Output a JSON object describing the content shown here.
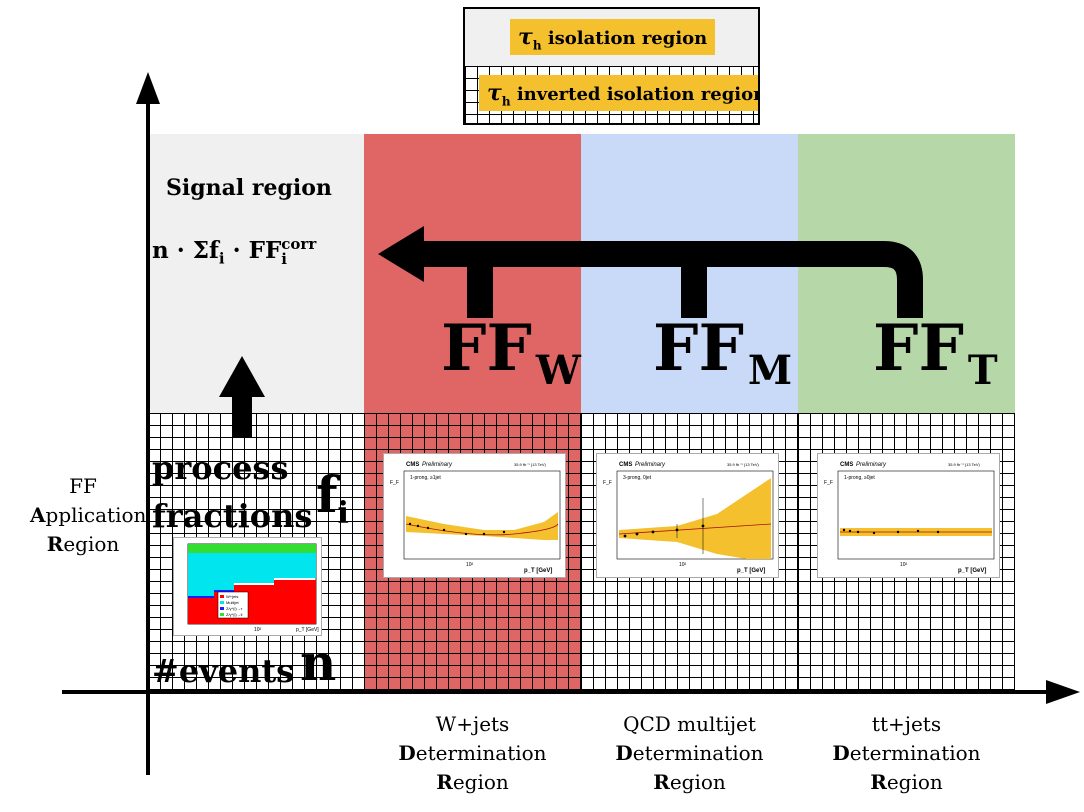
{
  "legend": {
    "isolation_label": "isolation region",
    "inverted_label": "inverted isolation region",
    "tau_symbol": "τ",
    "tau_sub": "h"
  },
  "signal_region": {
    "title": "Signal region",
    "formula_prefix": "n · Σf",
    "formula_i1": "i",
    "formula_mid": " · FF",
    "formula_sub": "i",
    "formula_sup": "corr"
  },
  "fake_factors": [
    {
      "main": "FF",
      "sub": "W"
    },
    {
      "main": "FF",
      "sub": "M"
    },
    {
      "main": "FF",
      "sub": "T"
    }
  ],
  "application": {
    "process_label": "process",
    "fractions_label": "fractions",
    "fi_main": "f",
    "fi_sub": "i",
    "events_label": "#events",
    "n_label": "n"
  },
  "y_axis_label": {
    "line1": "FF",
    "line2_bold": "A",
    "line2_rest": "pplication",
    "line3_bold": "R",
    "line3_rest": "egion"
  },
  "x_axis_labels": [
    {
      "line1": "W+jets",
      "line2_bold": "D",
      "line2_rest": "etermination",
      "line3_bold": "R",
      "line3_rest": "egion"
    },
    {
      "line1": "QCD multijet",
      "line2_bold": "D",
      "line2_rest": "etermination",
      "line3_bold": "R",
      "line3_rest": "egion"
    },
    {
      "line1": "tt+jets",
      "line2_bold": "D",
      "line2_rest": "etermination",
      "line3_bold": "R",
      "line3_rest": "egion"
    }
  ],
  "plots": [
    {
      "cms": "CMS",
      "prelim": "Preliminary",
      "lumi": "35.9 fb⁻¹ (13 TeV)",
      "category": "1-prong, ≥1jet",
      "ylabel": "F_F",
      "xlabel": "p_T [GeV]",
      "xtick": "10²"
    },
    {
      "cms": "CMS",
      "prelim": "Preliminary",
      "lumi": "35.9 fb⁻¹ (13 TeV)",
      "category": "3-prong, 0jet",
      "ylabel": "F_F",
      "xlabel": "p_T [GeV]",
      "xtick": "10²"
    },
    {
      "cms": "CMS",
      "prelim": "Preliminary",
      "lumi": "35.9 fb⁻¹ (13 TeV)",
      "category": "1-prong, ≥0jet",
      "ylabel": "F_F",
      "xlabel": "p_T [GeV]",
      "xtick": "10²"
    }
  ],
  "fraction_plot": {
    "legend": [
      "W+jets",
      "Multijet",
      "Z/γ*(l)→τ",
      "Z/γ*(l)→ll"
    ],
    "xtick": "10²",
    "xlabel": "p_T [GeV]"
  },
  "colors": {
    "w_region": "#e06666",
    "m_region": "#c9daf8",
    "t_region": "#b6d7a8",
    "signal_region": "#f0f0f0",
    "legend_tag": "#f4c02e",
    "band": "#f4c02e"
  }
}
